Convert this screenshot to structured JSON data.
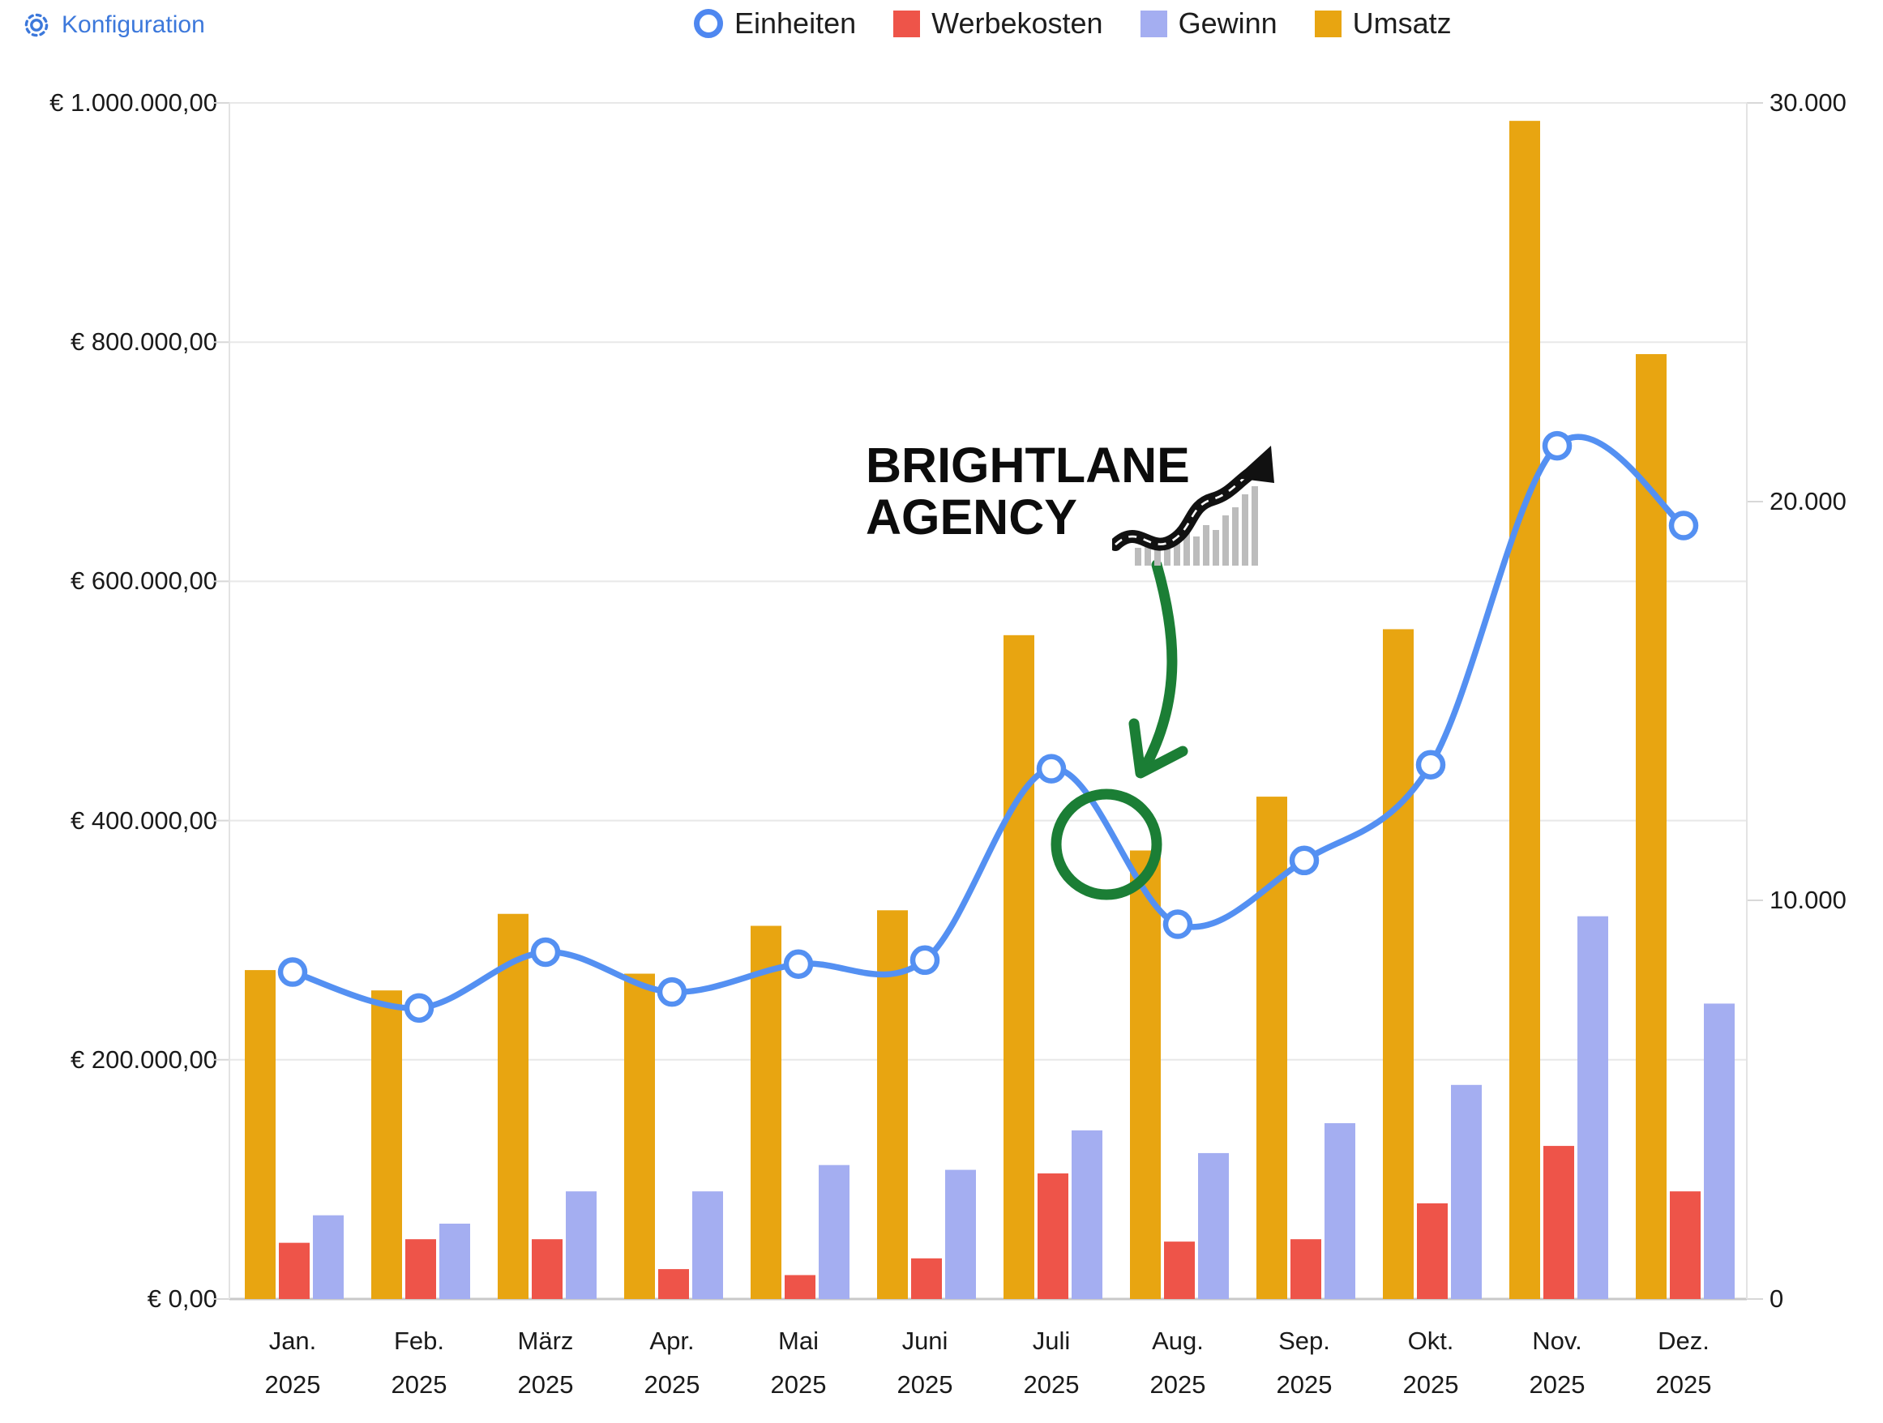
{
  "header": {
    "config_label": "Konfiguration",
    "config_color": "#3C78DB"
  },
  "legend": {
    "items": [
      {
        "label": "Einheiten",
        "swatch": "circle",
        "color": "#4E87F0"
      },
      {
        "label": "Werbekosten",
        "swatch": "square",
        "color": "#EE5449"
      },
      {
        "label": "Gewinn",
        "swatch": "square",
        "color": "#A4AEF1"
      },
      {
        "label": "Umsatz",
        "swatch": "square",
        "color": "#E8A511"
      }
    ]
  },
  "chart_data": {
    "type": "combo bar+line",
    "categories": [
      "Jan.",
      "Feb.",
      "März",
      "Apr.",
      "Mai",
      "Juni",
      "Juli",
      "Aug.",
      "Sep.",
      "Okt.",
      "Nov.",
      "Dez."
    ],
    "year_label": "2025",
    "series": [
      {
        "name": "Umsatz",
        "type": "bar",
        "axis": "left",
        "color": "#E8A511",
        "values": [
          275000,
          258000,
          322000,
          272000,
          312000,
          325000,
          555000,
          375000,
          420000,
          560000,
          985000,
          790000
        ]
      },
      {
        "name": "Werbekosten",
        "type": "bar",
        "axis": "left",
        "color": "#EE5449",
        "values": [
          47000,
          50000,
          50000,
          25000,
          20000,
          34000,
          105000,
          48000,
          50000,
          80000,
          128000,
          90000
        ]
      },
      {
        "name": "Gewinn",
        "type": "bar",
        "axis": "left",
        "color": "#A4AEF1",
        "values": [
          70000,
          63000,
          90000,
          90000,
          112000,
          108000,
          141000,
          122000,
          147000,
          179000,
          320000,
          247000
        ]
      },
      {
        "name": "Einheiten",
        "type": "line",
        "axis": "right",
        "color": "#5490F2",
        "values": [
          8200,
          7300,
          8700,
          7700,
          8400,
          8500,
          13300,
          9400,
          11000,
          13400,
          21400,
          19400
        ]
      }
    ],
    "left_axis": {
      "ticks": [
        "€ 1.000.000,00",
        "€ 800.000,00",
        "€ 600.000,00",
        "€ 400.000,00",
        "€ 200.000,00",
        "€ 0,00"
      ],
      "min": 0,
      "max": 1000000
    },
    "right_axis": {
      "ticks": [
        "30.000",
        "20.000",
        "10.000",
        "0"
      ],
      "min": 0,
      "max": 30000
    },
    "grid": true,
    "legend_position": "top"
  },
  "annotations": {
    "logo_line1": "BRIGHTLANE",
    "logo_line2": "AGENCY",
    "highlight_color": "#1B7E35"
  }
}
